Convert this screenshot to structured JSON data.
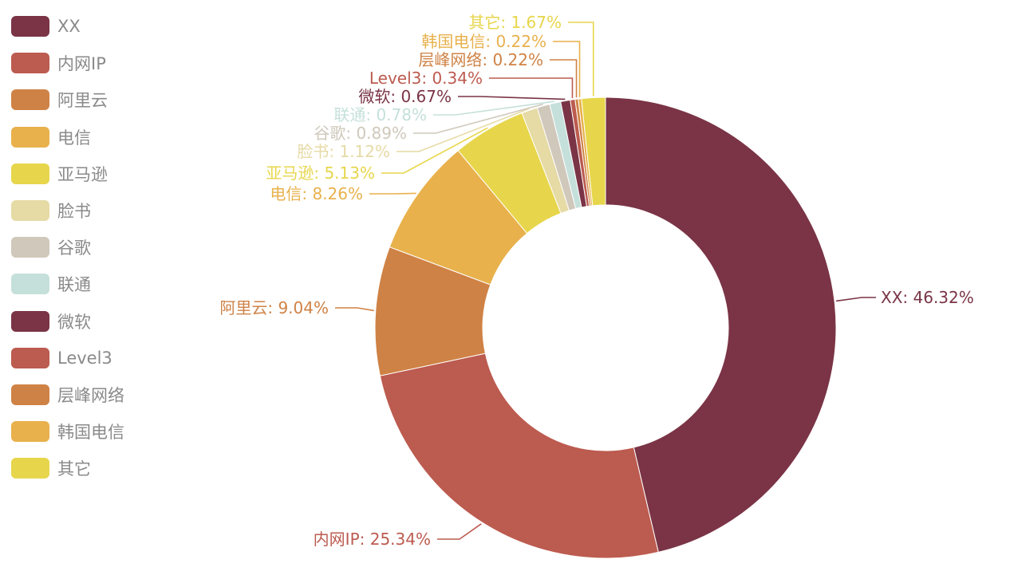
{
  "chart_data": {
    "type": "pie",
    "donut": true,
    "title": "",
    "legend_position": "left",
    "categories": [
      "XX",
      "内网IP",
      "阿里云",
      "电信",
      "亚马逊",
      "脸书",
      "谷歌",
      "联通",
      "微软",
      "Level3",
      "层峰网络",
      "韩国电信",
      "其它"
    ],
    "values": [
      46.32,
      25.34,
      9.04,
      8.26,
      5.13,
      1.12,
      0.89,
      0.78,
      0.67,
      0.34,
      0.22,
      0.22,
      1.67
    ],
    "data_labels": [
      "XX: 46.32%",
      "内网IP: 25.34%",
      "阿里云: 9.04%",
      "电信: 8.26%",
      "亚马逊: 5.13%",
      "脸书: 1.12%",
      "谷歌: 0.89%",
      "联通: 0.78%",
      "微软: 0.67%",
      "Level3: 0.34%",
      "层峰网络: 0.22%",
      "韩国电信: 0.22%",
      "其它: 1.67%"
    ],
    "colors": [
      "#7a3446",
      "#bc5b4f",
      "#cf8245",
      "#e8b14c",
      "#e7d64b",
      "#e6daa5",
      "#cfc8bb",
      "#c5e0da",
      "#7a3446",
      "#bc5b4f",
      "#cf8245",
      "#e8b14c",
      "#e7d64b"
    ]
  }
}
